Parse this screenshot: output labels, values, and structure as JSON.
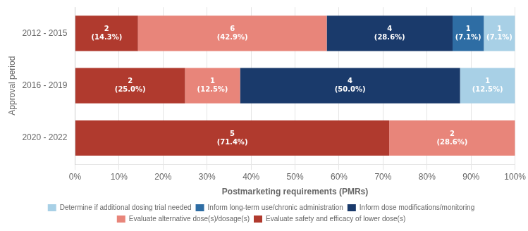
{
  "chart_data": {
    "type": "bar",
    "orientation": "horizontal",
    "stacked": true,
    "data_labels": true,
    "xlabel": "Postmarketing requirements (PMRs)",
    "ylabel": "Approval period",
    "categories": [
      "2012 - 2015",
      "2016 - 2019",
      "2020 - 2022"
    ],
    "series": [
      {
        "name": "Evaluate safety and efficacy of lower dose(s)",
        "color": "#b03a2e",
        "values": [
          14.3,
          25.0,
          71.4
        ],
        "value_labels": [
          "2\n(14.3%)",
          "2\n(25.0%)",
          "5\n(71.4%)"
        ]
      },
      {
        "name": "Evaluate alternative dose(s)/dosage(s)",
        "color": "#e8857a",
        "values": [
          42.9,
          12.5,
          28.6
        ],
        "value_labels": [
          "6\n(42.9%)",
          "1\n(12.5%)",
          "2\n(28.6%)"
        ]
      },
      {
        "name": "Inform dose modifications/monitoring",
        "color": "#1a3a6b",
        "values": [
          28.6,
          50.0,
          0.0
        ],
        "value_labels": [
          "4\n(28.6%)",
          "4\n(50.0%)",
          null
        ]
      },
      {
        "name": "Inform long-term use/chronic administration",
        "color": "#2e6da4",
        "values": [
          7.1,
          0.0,
          0.0
        ],
        "value_labels": [
          "1\n(7.1%)",
          null,
          null
        ]
      },
      {
        "name": "Determine if additional dosing trial needed",
        "color": "#a8d0e6",
        "values": [
          7.1,
          12.5,
          0.0
        ],
        "value_labels": [
          "1\n(7.1%)",
          "1\n(12.5%)",
          null
        ]
      }
    ],
    "xlim": [
      0,
      100
    ],
    "xticks": [
      {
        "value": 0,
        "label": "0%"
      },
      {
        "value": 10,
        "label": "10%"
      },
      {
        "value": 20,
        "label": "20%"
      },
      {
        "value": 30,
        "label": "30%"
      },
      {
        "value": 40,
        "label": "40%"
      },
      {
        "value": 50,
        "label": "50%"
      },
      {
        "value": 60,
        "label": "60%"
      },
      {
        "value": 70,
        "label": "70%"
      },
      {
        "value": 80,
        "label": "80%"
      },
      {
        "value": 90,
        "label": "90%"
      },
      {
        "value": 100,
        "label": "100%"
      }
    ],
    "grid": true,
    "legend": "bottom"
  }
}
